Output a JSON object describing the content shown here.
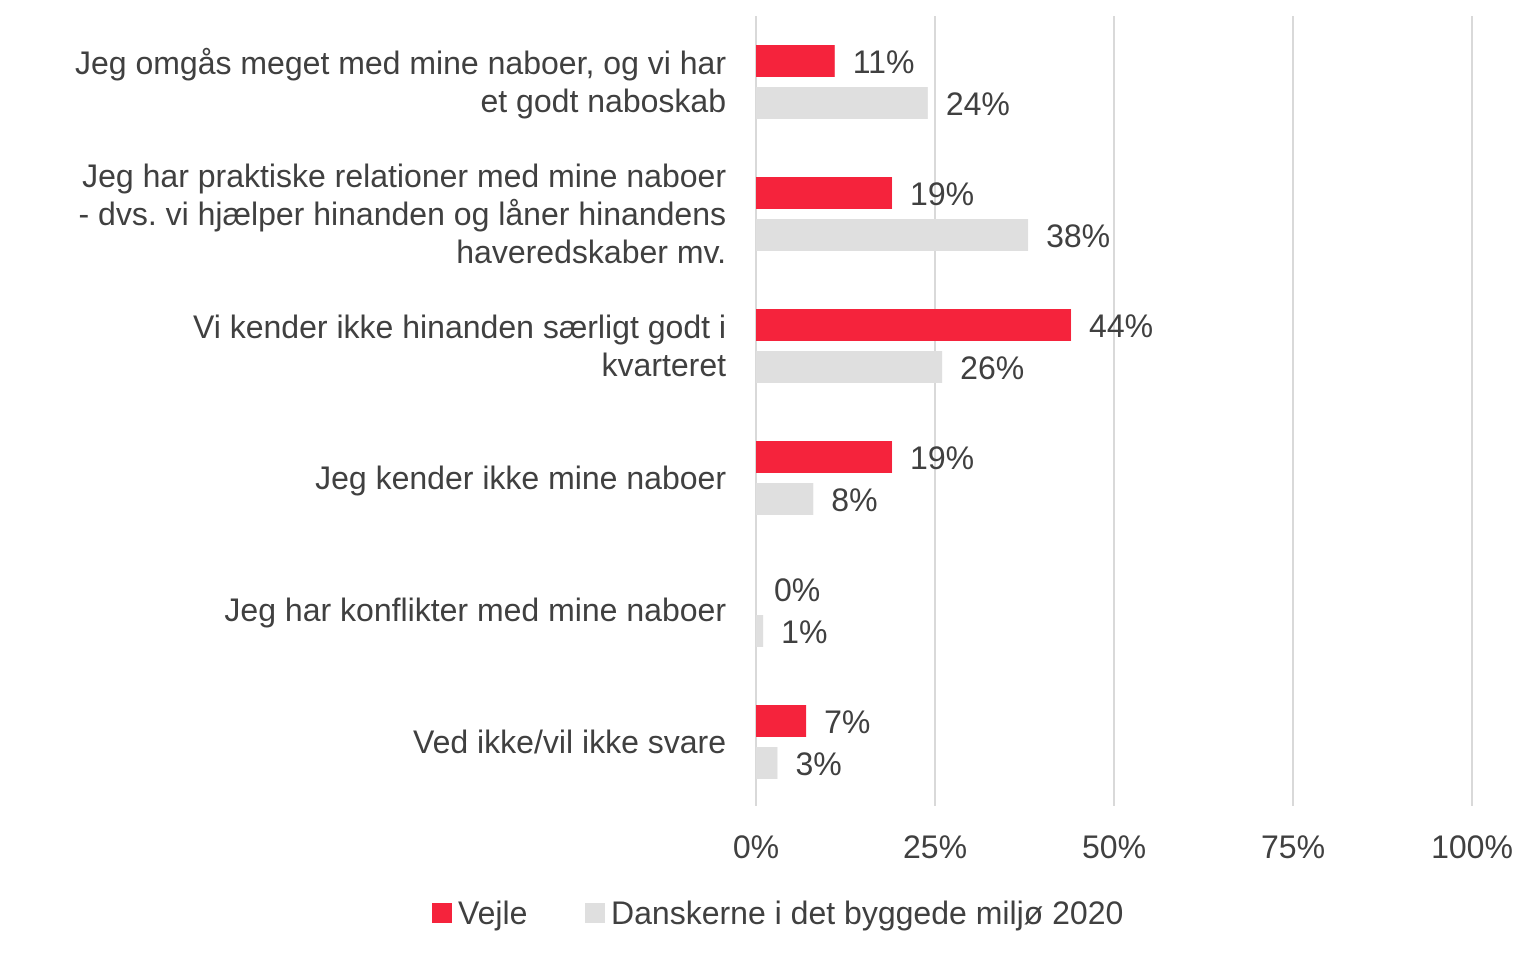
{
  "chart_data": {
    "type": "bar",
    "orientation": "horizontal",
    "categories": [
      "Jeg omgås meget med mine naboer, og vi har\net godt naboskab",
      "Jeg har praktiske relationer med mine naboer\n- dvs. vi hjælper hinanden og låner hinandens\nhaveredskaber mv.",
      "Vi kender ikke hinanden særligt godt i\nkvarteret",
      "Jeg kender ikke mine naboer",
      "Jeg har konflikter med mine naboer",
      "Ved ikke/vil ikke svare"
    ],
    "series": [
      {
        "name": "Vejle",
        "color": "#F5233C",
        "values": [
          11,
          19,
          44,
          19,
          0,
          7
        ],
        "labels": [
          "11%",
          "19%",
          "44%",
          "19%",
          "0%",
          "7%"
        ]
      },
      {
        "name": "Danskerne i det byggede miljø 2020",
        "color": "#DFDFDF",
        "values": [
          24,
          38,
          26,
          8,
          1,
          3
        ],
        "labels": [
          "24%",
          "38%",
          "26%",
          "8%",
          "1%",
          "3%"
        ]
      }
    ],
    "xlim": [
      0,
      100
    ],
    "xticks": [
      0,
      25,
      50,
      75,
      100
    ],
    "xtick_labels": [
      "0%",
      "25%",
      "50%",
      "75%",
      "100%"
    ],
    "grid": true,
    "legend_position": "bottom",
    "title": "",
    "xlabel": "",
    "ylabel": ""
  }
}
